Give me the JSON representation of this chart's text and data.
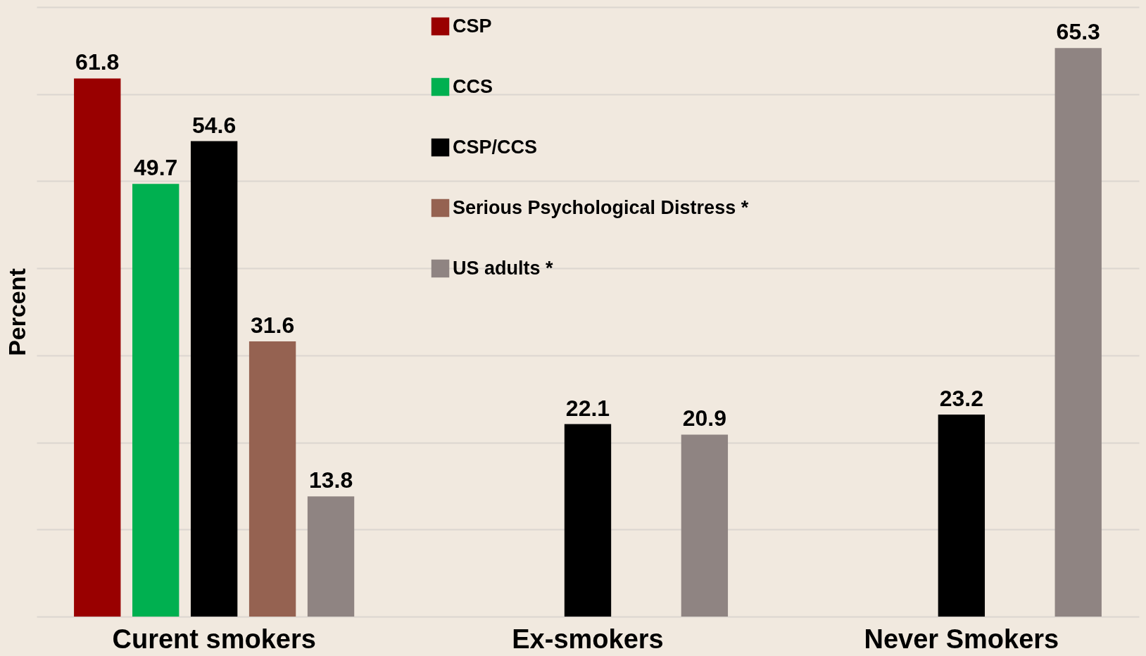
{
  "chart_data": {
    "type": "bar",
    "ylabel": "Percent",
    "categories": [
      "Curent smokers",
      "Ex-smokers",
      "Never Smokers"
    ],
    "series": [
      {
        "name": "CSP",
        "color": "#990000",
        "values": [
          61.8,
          null,
          null
        ]
      },
      {
        "name": "CCS",
        "color": "#00b050",
        "values": [
          49.7,
          null,
          null
        ]
      },
      {
        "name": "CSP/CCS",
        "color": "#000000",
        "values": [
          54.6,
          22.1,
          23.2
        ]
      },
      {
        "name": "Serious Psychological Distress *",
        "color": "#956251",
        "values": [
          31.6,
          null,
          null
        ]
      },
      {
        "name": "US adults *",
        "color": "#8f8482",
        "values": [
          13.8,
          20.9,
          65.3
        ]
      }
    ],
    "ylim": [
      0,
      70
    ],
    "yticks": [
      {
        "value": 0,
        "label": null
      },
      {
        "value": 10,
        "label": null
      },
      {
        "value": 20,
        "label": null
      },
      {
        "value": 30,
        "label": null
      },
      {
        "value": 40,
        "label": null
      },
      {
        "value": 50,
        "label": null
      },
      {
        "value": 60,
        "label": null
      },
      {
        "value": 70,
        "label": null
      }
    ],
    "grid": "y",
    "legend": "top",
    "data_labels": true,
    "tick_labels": "x"
  }
}
